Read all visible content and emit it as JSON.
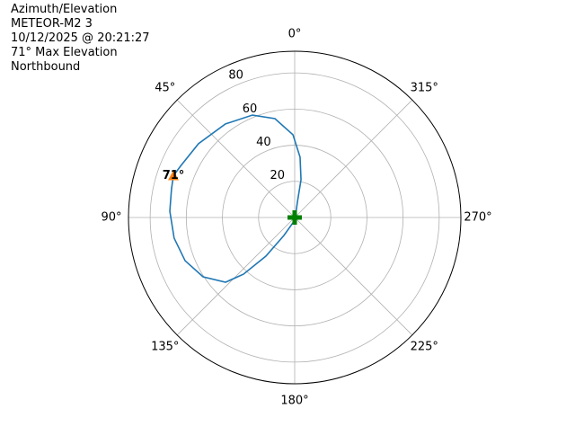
{
  "chart_data": {
    "type": "polar",
    "title_lines": [
      "Azimuth/Elevation",
      "METEOR-M2 3",
      "10/12/2025 @ 20:21:27",
      "71° Max Elevation",
      "Northbound"
    ],
    "theta_zero": "N",
    "theta_direction": -1,
    "grid": true,
    "ylim": [
      0,
      92
    ],
    "yticks": [
      20,
      40,
      60,
      80
    ],
    "xticks": [
      {
        "value": 0,
        "label": "0°"
      },
      {
        "value": 45,
        "label": "45°"
      },
      {
        "value": 90,
        "label": "90°"
      },
      {
        "value": 135,
        "label": "135°"
      },
      {
        "value": 180,
        "label": "180°"
      },
      {
        "value": 225,
        "label": "225°"
      },
      {
        "value": 270,
        "label": "270°"
      },
      {
        "value": 315,
        "label": "315°"
      }
    ],
    "series": [
      {
        "color": "#1f77b4",
        "theta": [
          162,
          149,
          143.3,
          137.9,
          133.1,
          122.9,
          111.5,
          99.7,
          87.1,
          76.9,
          71,
          65.8,
          52.5,
          36.5,
          22.4,
          11.3,
          1.2,
          354.9,
          350.5,
          350,
          333
        ],
        "r": [
          3,
          11.6,
          26.7,
          42.3,
          52.4,
          60.4,
          65.2,
          67.7,
          69.2,
          70,
          71,
          69.3,
          67.1,
          64.4,
          61.3,
          55.8,
          45.8,
          33.5,
          21.2,
          8.6,
          1
        ]
      }
    ],
    "max_marker": {
      "theta": 71,
      "r": 71,
      "label": "71°",
      "color": "#ff7f0e"
    },
    "start_marker": {
      "theta": 0,
      "r": 0,
      "color": "#008000"
    }
  }
}
